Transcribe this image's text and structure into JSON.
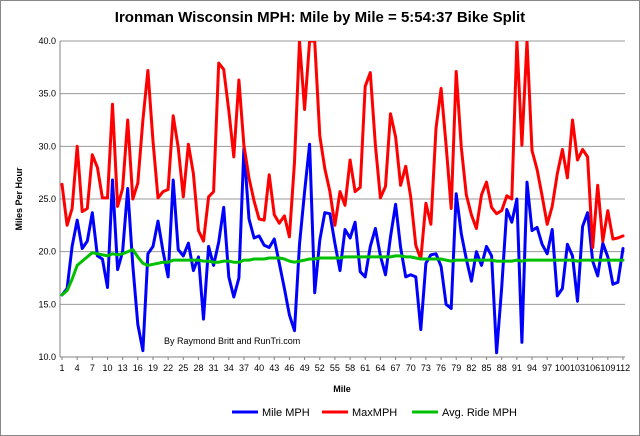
{
  "chart_data": {
    "type": "line",
    "title": "Ironman Wisconsin MPH: Mile by Mile = 5:54:37 Bike Split",
    "xlabel": "Mile",
    "ylabel": "Miles Per Hour",
    "ylim": [
      10.0,
      40.0
    ],
    "yticks": [
      "10.0",
      "15.0",
      "20.0",
      "25.0",
      "30.0",
      "35.0",
      "40.0"
    ],
    "xtick_labels": [
      "1",
      "4",
      "7",
      "10",
      "13",
      "16",
      "19",
      "22",
      "25",
      "28",
      "31",
      "34",
      "37",
      "40",
      "43",
      "46",
      "49",
      "52",
      "55",
      "58",
      "61",
      "64",
      "67",
      "70",
      "73",
      "76",
      "79",
      "82",
      "85",
      "88",
      "91",
      "94",
      "97",
      "100",
      "103",
      "106",
      "109",
      "112"
    ],
    "annotation": "By Raymond Britt and RunTri.com",
    "series": [
      {
        "name": "Mile MPH",
        "color": "#0000ff",
        "values": [
          15.9,
          16.5,
          20.5,
          23.0,
          20.3,
          21.0,
          23.7,
          19.6,
          19.3,
          16.6,
          26.8,
          18.3,
          20.0,
          26.0,
          18.7,
          13.1,
          10.6,
          19.8,
          20.5,
          22.9,
          20.0,
          17.6,
          26.8,
          20.2,
          19.6,
          20.8,
          18.2,
          19.5,
          13.6,
          20.5,
          18.7,
          20.9,
          24.2,
          17.6,
          15.7,
          17.5,
          29.8,
          23.1,
          21.3,
          21.5,
          20.6,
          20.4,
          21.2,
          18.9,
          16.5,
          14.0,
          12.5,
          20.7,
          25.7,
          30.2,
          16.1,
          21.1,
          23.7,
          23.6,
          20.8,
          18.2,
          22.1,
          21.3,
          22.8,
          18.1,
          17.6,
          20.5,
          22.2,
          19.6,
          17.8,
          21.4,
          24.5,
          20.4,
          17.6,
          17.8,
          17.6,
          12.6,
          18.9,
          19.7,
          19.8,
          18.6,
          15.0,
          14.6,
          25.5,
          21.7,
          19.3,
          17.2,
          20.0,
          18.7,
          20.5,
          19.6,
          10.4,
          16.6,
          24.0,
          22.8,
          25.0,
          11.4,
          26.6,
          22.0,
          22.3,
          20.7,
          19.8,
          22.1,
          15.8,
          16.5,
          20.7,
          19.6,
          15.3,
          22.4,
          23.7,
          19.1,
          17.7,
          20.8,
          19.5,
          16.9,
          17.1,
          20.3
        ]
      },
      {
        "name": "MaxMPH",
        "color": "#ff0000",
        "values": [
          26.4,
          22.5,
          24.1,
          30.0,
          23.8,
          24.1,
          29.2,
          28.0,
          25.1,
          25.1,
          34.0,
          24.3,
          26.0,
          32.5,
          25.0,
          26.5,
          32.5,
          37.2,
          30.5,
          25.1,
          25.7,
          25.9,
          32.9,
          29.9,
          25.2,
          30.2,
          27.4,
          22.0,
          21.0,
          25.2,
          25.7,
          37.9,
          37.3,
          33.4,
          29.0,
          36.3,
          30.1,
          27.0,
          24.8,
          23.1,
          23.0,
          27.3,
          23.5,
          22.7,
          23.4,
          21.4,
          28.5,
          40.5,
          33.5,
          41.0,
          41.0,
          31.0,
          27.9,
          25.7,
          22.5,
          25.7,
          24.4,
          28.7,
          25.7,
          26.1,
          35.7,
          37.0,
          30.1,
          25.1,
          26.2,
          33.1,
          30.9,
          26.3,
          28.1,
          25.2,
          20.6,
          19.3,
          24.6,
          22.6,
          31.7,
          35.5,
          30.1,
          24.1,
          37.1,
          29.9,
          25.4,
          23.5,
          22.2,
          25.4,
          26.6,
          24.2,
          23.6,
          23.9,
          25.3,
          25.0,
          40.5,
          30.1,
          40.5,
          29.6,
          27.8,
          25.3,
          22.6,
          24.3,
          27.4,
          29.7,
          27.0,
          32.5,
          28.7,
          29.7,
          29.0,
          20.4,
          26.3,
          21.0,
          23.9,
          21.2,
          21.3,
          21.5
        ]
      },
      {
        "name": "Avg. Ride MPH",
        "color": "#00c000",
        "values": [
          15.9,
          16.3,
          17.4,
          18.7,
          19.1,
          19.5,
          19.9,
          19.8,
          19.7,
          19.6,
          19.8,
          19.7,
          19.8,
          20.0,
          20.2,
          19.5,
          18.9,
          18.7,
          18.8,
          18.9,
          19.0,
          19.0,
          19.2,
          19.2,
          19.2,
          19.2,
          19.2,
          19.2,
          19.1,
          19.1,
          19.0,
          19.0,
          19.1,
          19.1,
          19.0,
          19.0,
          19.2,
          19.2,
          19.3,
          19.3,
          19.3,
          19.4,
          19.4,
          19.4,
          19.3,
          19.1,
          19.0,
          19.1,
          19.2,
          19.3,
          19.3,
          19.4,
          19.4,
          19.4,
          19.4,
          19.4,
          19.5,
          19.5,
          19.5,
          19.5,
          19.5,
          19.5,
          19.5,
          19.5,
          19.5,
          19.5,
          19.6,
          19.6,
          19.5,
          19.5,
          19.4,
          19.3,
          19.3,
          19.3,
          19.3,
          19.3,
          19.2,
          19.1,
          19.2,
          19.2,
          19.2,
          19.2,
          19.2,
          19.2,
          19.2,
          19.2,
          19.1,
          19.1,
          19.1,
          19.1,
          19.2,
          19.1,
          19.2,
          19.2,
          19.2,
          19.2,
          19.2,
          19.2,
          19.2,
          19.2,
          19.2,
          19.2,
          19.1,
          19.2,
          19.2,
          19.2,
          19.2,
          19.2,
          19.2,
          19.2,
          19.2,
          19.2
        ]
      }
    ]
  }
}
